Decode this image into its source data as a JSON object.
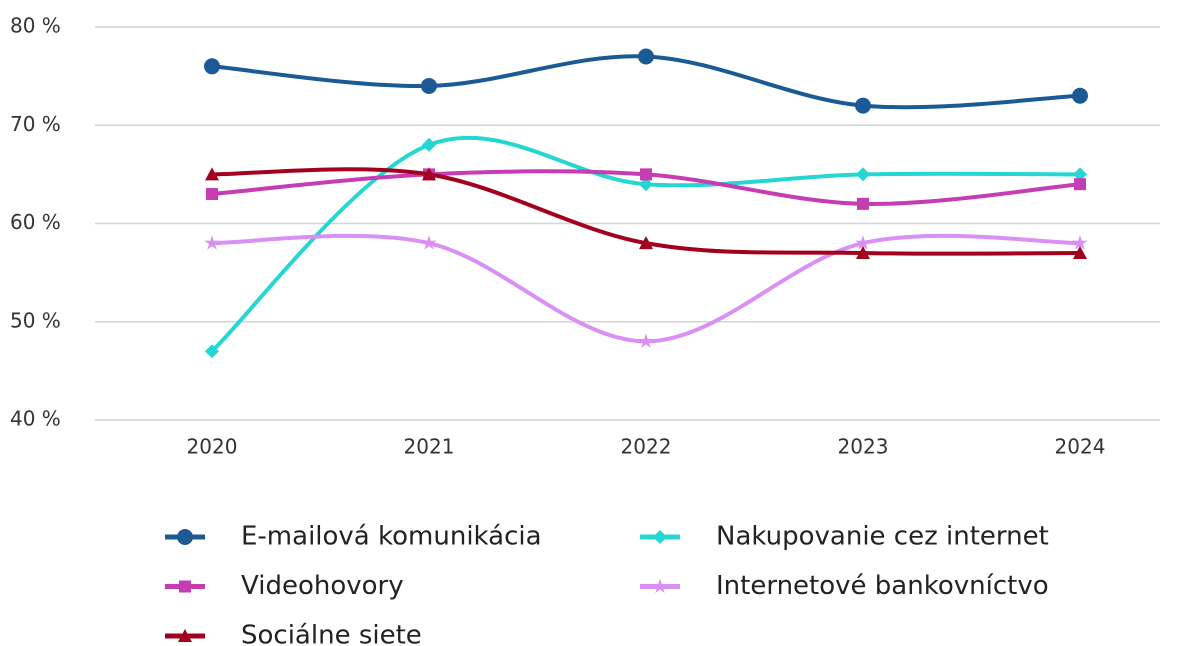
{
  "chart_data": {
    "type": "line",
    "categories": [
      "2020",
      "2021",
      "2022",
      "2023",
      "2024"
    ],
    "series": [
      {
        "name": "E-mailová komunikácia",
        "color": "#1b5a94",
        "marker": "circle",
        "values": [
          76,
          74,
          77,
          72,
          73
        ]
      },
      {
        "name": "Nakupovanie cez internet",
        "color": "#25d6d3",
        "marker": "diamond",
        "values": [
          47,
          68,
          64,
          65,
          65
        ]
      },
      {
        "name": "Videohovory",
        "color": "#c63cb3",
        "marker": "square",
        "values": [
          63,
          65,
          65,
          62,
          64
        ]
      },
      {
        "name": "Internetové bankovníctvo",
        "color": "#d98ff4",
        "marker": "star",
        "values": [
          58,
          58,
          48,
          58,
          58
        ]
      },
      {
        "name": "Sociálne siete",
        "color": "#a1001e",
        "marker": "triangle",
        "values": [
          65,
          65,
          58,
          57,
          57
        ]
      }
    ],
    "ylim": [
      40,
      80
    ],
    "yticks": [
      {
        "value": 40,
        "label": "40 %"
      },
      {
        "value": 50,
        "label": "50 %"
      },
      {
        "value": 60,
        "label": "60 %"
      },
      {
        "value": 70,
        "label": "70 %"
      },
      {
        "value": 80,
        "label": "80 %"
      }
    ],
    "grid": true,
    "smooth": true,
    "legend": "bottom"
  }
}
